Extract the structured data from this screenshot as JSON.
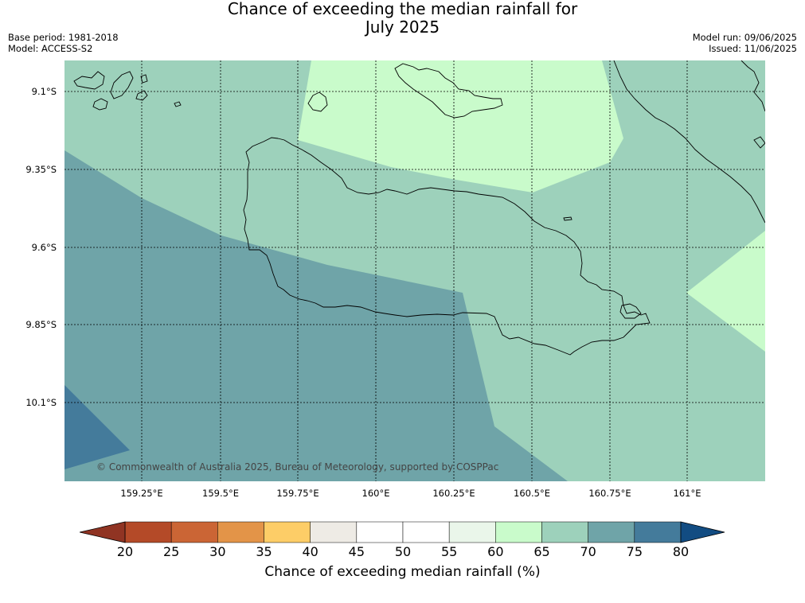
{
  "title": {
    "line1": "Chance of exceeding the median rainfall for",
    "line2": "July 2025"
  },
  "meta_left": {
    "base_period": "Base period: 1981-2018",
    "model": "Model: ACCESS-S2"
  },
  "meta_right": {
    "model_run": "Model run: 09/06/2025",
    "issued": "Issued: 11/06/2025"
  },
  "map": {
    "copyright": "© Commonwealth of Australia 2025, Bureau of Meteorology, supported by COSPPac",
    "lat_labels": [
      "9.1°S",
      "9.35°S",
      "9.6°S",
      "9.85°S",
      "10.1°S"
    ],
    "lon_labels": [
      "159.25°E",
      "159.5°E",
      "159.75°E",
      "160°E",
      "160.25°E",
      "160.5°E",
      "160.75°E",
      "161°E"
    ],
    "zone_colors": {
      "p60_65": "#c9fbcb",
      "p65_70": "#9dd1bb",
      "p70_75": "#6fa4a8",
      "p75_80": "#447b9b"
    }
  },
  "colorbar": {
    "label": "Chance of exceeding median rainfall (%)",
    "ticks": [
      "20",
      "25",
      "30",
      "35",
      "40",
      "45",
      "50",
      "55",
      "60",
      "65",
      "70",
      "75",
      "80"
    ],
    "under_color": "#903423",
    "over_color": "#124c82",
    "colors": [
      "#b44a28",
      "#cb6535",
      "#e39448",
      "#fdcd67",
      "#eeebe5",
      "#ffffff",
      "#ffffff",
      "#eaf6ea",
      "#c9fbcb",
      "#9dd1bb",
      "#6fa4a8",
      "#447b9b"
    ]
  }
}
